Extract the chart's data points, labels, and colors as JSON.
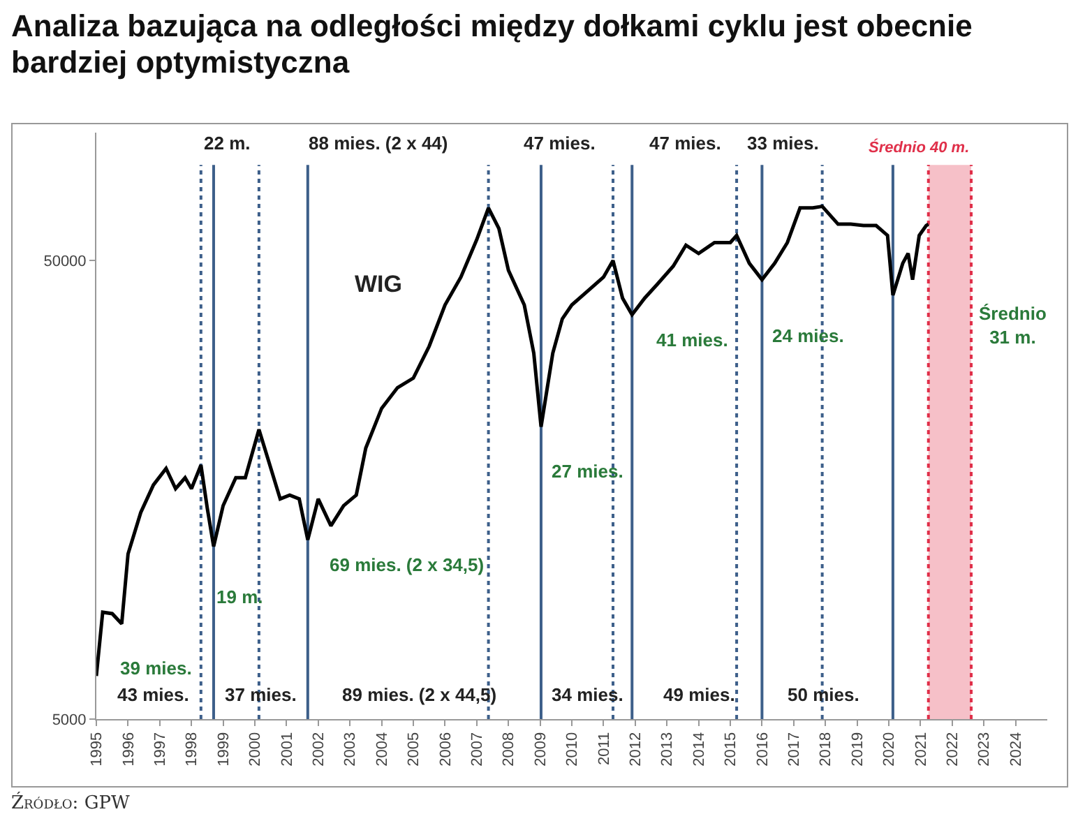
{
  "chart_data": {
    "type": "line",
    "title": "Analiza bazująca na odległości między dołkami cyklu jest obecnie bardziej optymistyczna",
    "x": [
      1995.0,
      1995.2,
      1995.5,
      1995.8,
      1996.0,
      1996.4,
      1996.8,
      1997.2,
      1997.5,
      1997.8,
      1998.0,
      1998.3,
      1998.5,
      1998.7,
      1999.0,
      1999.4,
      1999.7,
      2000.13,
      2000.4,
      2000.8,
      2001.1,
      2001.4,
      2001.67,
      2002.0,
      2002.4,
      2002.8,
      2003.2,
      2003.5,
      2004.0,
      2004.5,
      2005.0,
      2005.5,
      2006.0,
      2006.5,
      2007.0,
      2007.37,
      2007.7,
      2008.0,
      2008.5,
      2008.8,
      2009.03,
      2009.4,
      2009.7,
      2010.0,
      2010.5,
      2011.0,
      2011.3,
      2011.6,
      2011.9,
      2012.3,
      2012.7,
      2013.2,
      2013.6,
      2014.0,
      2014.5,
      2015.0,
      2015.2,
      2015.6,
      2016.0,
      2016.4,
      2016.8,
      2017.2,
      2017.6,
      2017.9,
      2018.4,
      2018.8,
      2019.2,
      2019.6,
      2019.96,
      2020.13,
      2020.44,
      2020.61,
      2020.75,
      2020.96,
      2021.18,
      2021.25
    ],
    "series": [
      {
        "color": "#000000",
        "values": [
          6210,
          8550,
          8490,
          8070,
          11460,
          14100,
          16200,
          17600,
          15900,
          16800,
          15900,
          17900,
          14400,
          11900,
          14600,
          16800,
          16800,
          21400,
          18600,
          15100,
          15400,
          15100,
          12300,
          15100,
          13200,
          14600,
          15400,
          19500,
          23800,
          26400,
          27700,
          32500,
          40000,
          46000,
          55500,
          65100,
          58700,
          47600,
          40000,
          31400,
          21700,
          31400,
          37300,
          40000,
          42900,
          46000,
          50000,
          41400,
          38100,
          41400,
          44400,
          48600,
          54000,
          51800,
          54700,
          54700,
          56700,
          49300,
          45400,
          49300,
          54700,
          65100,
          65100,
          65600,
          60000,
          60000,
          59600,
          59600,
          56700,
          42000,
          49300,
          51800,
          45400,
          56700,
          59600,
          60000
        ]
      }
    ],
    "xlim": [
      1995,
      2025
    ],
    "xticks": [
      1995,
      1996,
      1997,
      1998,
      1999,
      2000,
      2001,
      2002,
      2003,
      2004,
      2005,
      2006,
      2007,
      2008,
      2009,
      2010,
      2011,
      2012,
      2013,
      2014,
      2015,
      2016,
      2017,
      2018,
      2019,
      2020,
      2021,
      2022,
      2023,
      2024
    ],
    "ylim": [
      5000,
      95000
    ],
    "yticks": [
      5000,
      50000
    ],
    "log": true,
    "grid": false,
    "ref_lines": [
      {
        "axis": "x",
        "value": 1998.7,
        "color": "#3d5f8a"
      },
      {
        "axis": "x",
        "value": 2001.67,
        "color": "#3d5f8a"
      },
      {
        "axis": "x",
        "value": 2009.03,
        "color": "#3d5f8a"
      },
      {
        "axis": "x",
        "value": 2011.9,
        "color": "#3d5f8a"
      },
      {
        "axis": "x",
        "value": 2016.0,
        "color": "#3d5f8a"
      },
      {
        "axis": "x",
        "value": 2020.13,
        "color": "#3d5f8a"
      },
      {
        "axis": "x",
        "value": 1998.3,
        "color": "#3d5f8a",
        "line_style": "dotted"
      },
      {
        "axis": "x",
        "value": 2000.13,
        "color": "#3d5f8a",
        "line_style": "dotted"
      },
      {
        "axis": "x",
        "value": 2007.37,
        "color": "#3d5f8a",
        "line_style": "dotted"
      },
      {
        "axis": "x",
        "value": 2011.3,
        "color": "#3d5f8a",
        "line_style": "dotted"
      },
      {
        "axis": "x",
        "value": 2015.2,
        "color": "#3d5f8a",
        "line_style": "dotted"
      },
      {
        "axis": "x",
        "value": 2017.9,
        "color": "#3d5f8a",
        "line_style": "dotted"
      },
      {
        "axis": "x",
        "value": 2021.25,
        "color": "#e0304a",
        "line_style": "dotted"
      },
      {
        "axis": "x",
        "value": 2022.6,
        "color": "#e0304a",
        "line_style": "dotted"
      }
    ],
    "bands": [
      {
        "axis": "x",
        "from": 2021.25,
        "to": 2022.6,
        "label": "Średnio 40 m.",
        "color": "#e0304a"
      }
    ],
    "annotations": [
      "WIG",
      "22 m.",
      "88 mies. (2 x 44)",
      "47 mies.",
      "47 mies.",
      "33 mies.",
      "43 mies.",
      "37 mies.",
      "89 mies. (2 x 44,5)",
      "34 mies.",
      "49 mies.",
      "50 mies.",
      "39 mies.",
      "19 m.",
      "69 mies. (2 x 34,5)",
      "27 mies.",
      "41 mies.",
      "24 mies.",
      "Średnio\n31 m.",
      "Źródło: GPW"
    ]
  }
}
